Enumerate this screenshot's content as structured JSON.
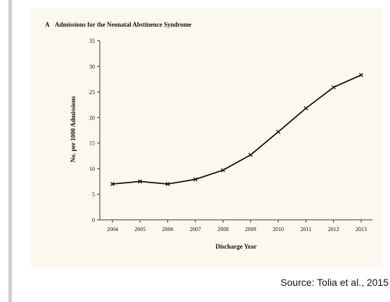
{
  "chart_data": {
    "type": "line",
    "panel_letter": "A",
    "title": "Admissions for the Neonatal Abstinence Syndrome",
    "xlabel": "Discharge Year",
    "ylabel": "No. per 1000 Admissions",
    "x": [
      "2004",
      "2005",
      "2006",
      "2007",
      "2008",
      "2009",
      "2010",
      "2011",
      "2012",
      "2013"
    ],
    "values": [
      7.0,
      7.5,
      7.0,
      7.9,
      9.7,
      12.7,
      17.2,
      21.8,
      25.9,
      28.3
    ],
    "ylim": [
      0,
      35
    ],
    "yticks": [
      0,
      5,
      10,
      15,
      20,
      25,
      30,
      35
    ],
    "grid": false,
    "marker": "x",
    "colors": {
      "line": "#111111",
      "background": "#fbf8ef"
    }
  },
  "caption": {
    "source": "Source: Tolia et al., 2015"
  }
}
